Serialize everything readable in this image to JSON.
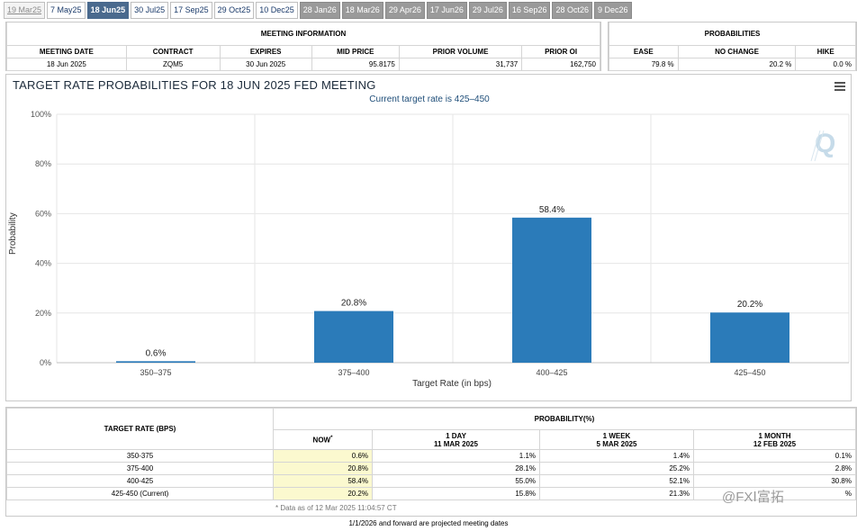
{
  "tabs": [
    {
      "label": "19 Mar25",
      "state": "disabled"
    },
    {
      "label": "7 May25",
      "state": "normal"
    },
    {
      "label": "18 Jun25",
      "state": "active"
    },
    {
      "label": "30 Jul25",
      "state": "normal"
    },
    {
      "label": "17 Sep25",
      "state": "normal"
    },
    {
      "label": "29 Oct25",
      "state": "normal"
    },
    {
      "label": "10 Dec25",
      "state": "normal"
    },
    {
      "label": "28 Jan26",
      "state": "projected"
    },
    {
      "label": "18 Mar26",
      "state": "projected"
    },
    {
      "label": "29 Apr26",
      "state": "projected"
    },
    {
      "label": "17 Jun26",
      "state": "projected"
    },
    {
      "label": "29 Jul26",
      "state": "projected"
    },
    {
      "label": "16 Sep26",
      "state": "projected"
    },
    {
      "label": "28 Oct26",
      "state": "projected"
    },
    {
      "label": "9 Dec26",
      "state": "projected"
    }
  ],
  "meeting_info": {
    "heading": "MEETING INFORMATION",
    "headers": [
      "MEETING DATE",
      "CONTRACT",
      "EXPIRES",
      "MID PRICE",
      "PRIOR VOLUME",
      "PRIOR OI"
    ],
    "values": [
      "18 Jun 2025",
      "ZQM5",
      "30 Jun 2025",
      "95.8175",
      "31,737",
      "162,750"
    ]
  },
  "probabilities": {
    "heading": "PROBABILITIES",
    "headers": [
      "EASE",
      "NO CHANGE",
      "HIKE"
    ],
    "values": [
      "79.8 %",
      "20.2 %",
      "0.0 %"
    ]
  },
  "chart": {
    "title": "TARGET RATE PROBABILITIES FOR 18 JUN 2025 FED MEETING",
    "subtitle": "Current target rate is 425–450",
    "watermark": "Q",
    "colors": {
      "bar": "#2b7bb9",
      "grid": "#e6e6e6",
      "axis": "#c0c0c0"
    }
  },
  "chart_data": {
    "type": "bar",
    "title": "TARGET RATE PROBABILITIES FOR 18 JUN 2025 FED MEETING",
    "subtitle": "Current target rate is 425–450",
    "categories": [
      "350–375",
      "375–400",
      "400–425",
      "425–450"
    ],
    "values": [
      0.6,
      20.8,
      58.4,
      20.2
    ],
    "data_labels": [
      "0.6%",
      "20.8%",
      "58.4%",
      "20.2%"
    ],
    "xlabel": "Target Rate (in bps)",
    "ylabel": "Probability",
    "ylim": [
      0,
      100
    ],
    "yticks": [
      "0%",
      "20%",
      "40%",
      "60%",
      "80%",
      "100%"
    ],
    "grid": true,
    "legend": "none"
  },
  "prob_table": {
    "col_header": "TARGET RATE (BPS)",
    "group_header": "PROBABILITY(%)",
    "now_label": "NOW",
    "now_marker": "*",
    "day_label": "1 DAY",
    "day_date": "11 MAR 2025",
    "week_label": "1 WEEK",
    "week_date": "5 MAR 2025",
    "month_label": "1 MONTH",
    "month_date": "12 FEB 2025",
    "rows": [
      {
        "rate": "350-375",
        "now": "0.6%",
        "day": "1.1%",
        "week": "1.4%",
        "month": "0.1%"
      },
      {
        "rate": "375-400",
        "now": "20.8%",
        "day": "28.1%",
        "week": "25.2%",
        "month": "2.8%"
      },
      {
        "rate": "400-425",
        "now": "58.4%",
        "day": "55.0%",
        "week": "52.1%",
        "month": "30.8%"
      },
      {
        "rate": "425-450 (Current)",
        "now": "20.2%",
        "day": "15.8%",
        "week": "21.3%",
        "month": "%"
      }
    ],
    "data_note": "* Data as of 12 Mar 2025 11:04:57 CT"
  },
  "footer": "1/1/2026 and forward are projected meeting dates",
  "watermark_logo": "@FXⅠ​富拓"
}
